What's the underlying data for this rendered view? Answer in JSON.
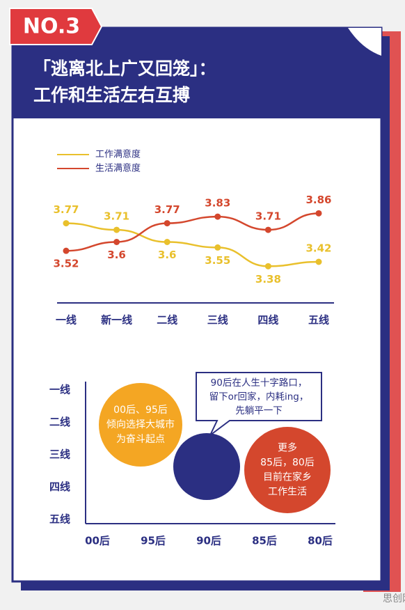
{
  "header": {
    "badge": "NO.3",
    "title_lines": [
      "「逃离北上广又回笼」：",
      "工作和生活左右互搏"
    ]
  },
  "chart_data": [
    {
      "type": "line",
      "categories": [
        "一线",
        "新一线",
        "二线",
        "三线",
        "四线",
        "五线"
      ],
      "series": [
        {
          "name": "工作满意度",
          "color": "#e9c02c",
          "values": [
            3.77,
            3.71,
            3.6,
            3.55,
            3.38,
            3.42
          ]
        },
        {
          "name": "生活满意度",
          "color": "#d4472d",
          "values": [
            3.52,
            3.6,
            3.77,
            3.83,
            3.71,
            3.86
          ]
        }
      ],
      "ylim": [
        3.3,
        3.9
      ]
    },
    {
      "type": "bubble",
      "x_categories": [
        "00后",
        "95后",
        "90后",
        "85后",
        "80后"
      ],
      "y_categories": [
        "一线",
        "二线",
        "三线",
        "四线",
        "五线"
      ],
      "bubbles": [
        {
          "color": "#f4a623",
          "lines": [
            "00后、95后",
            "倾向选择大城市",
            "为奋斗起点"
          ]
        },
        {
          "color": "#2b2f82",
          "callout": [
            "90后在人生十字路口，",
            "留下or回家，内耗ing，",
            "先躺平一下"
          ]
        },
        {
          "color": "#d4472d",
          "lines": [
            "更多",
            "85后，80后",
            "目前在家乡",
            "工作生活"
          ]
        }
      ]
    }
  ],
  "watermark": "思创网"
}
